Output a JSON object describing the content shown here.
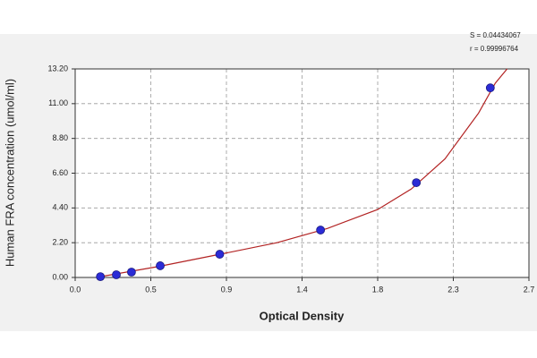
{
  "chart_data": {
    "type": "scatter",
    "x_label": "Optical Density",
    "y_label": "Human FRA concentration (umol/ml)",
    "annotations": [
      "S = 0.04434067",
      "r = 0.99996764"
    ],
    "xlim": [
      0,
      2.7
    ],
    "ylim": [
      0,
      13.2
    ],
    "xticks": [
      {
        "value": 0,
        "label": "0.0"
      },
      {
        "value": 0.45,
        "label": "0.5"
      },
      {
        "value": 0.9,
        "label": "0.9"
      },
      {
        "value": 1.35,
        "label": "1.4"
      },
      {
        "value": 1.8,
        "label": "1.8"
      },
      {
        "value": 2.25,
        "label": "2.3"
      },
      {
        "value": 2.7,
        "label": "2.7"
      }
    ],
    "yticks": [
      {
        "value": 0,
        "label": "0.00"
      },
      {
        "value": 2.2,
        "label": "2.20"
      },
      {
        "value": 4.4,
        "label": "4.40"
      },
      {
        "value": 6.6,
        "label": "6.60"
      },
      {
        "value": 8.8,
        "label": "8.80"
      },
      {
        "value": 11,
        "label": "11.00"
      },
      {
        "value": 13.2,
        "label": "13.20"
      }
    ],
    "grid": true,
    "series": [
      {
        "type": "line",
        "color": "#b22222",
        "x": [
          0.15,
          0.5,
          0.9,
          1.2,
          1.5,
          1.8,
          2.0,
          2.2,
          2.4,
          2.5,
          2.57
        ],
        "values": [
          0.05,
          0.7,
          1.55,
          2.2,
          3.1,
          4.3,
          5.6,
          7.5,
          10.4,
          12.3,
          13.2
        ]
      },
      {
        "type": "scatter",
        "color": "#2b2bd6",
        "x": [
          0.15,
          0.245,
          0.335,
          0.506,
          0.86,
          1.46,
          2.03,
          2.47
        ],
        "values": [
          0.05,
          0.17,
          0.34,
          0.74,
          1.47,
          3.0,
          6.0,
          12.0
        ]
      }
    ]
  }
}
